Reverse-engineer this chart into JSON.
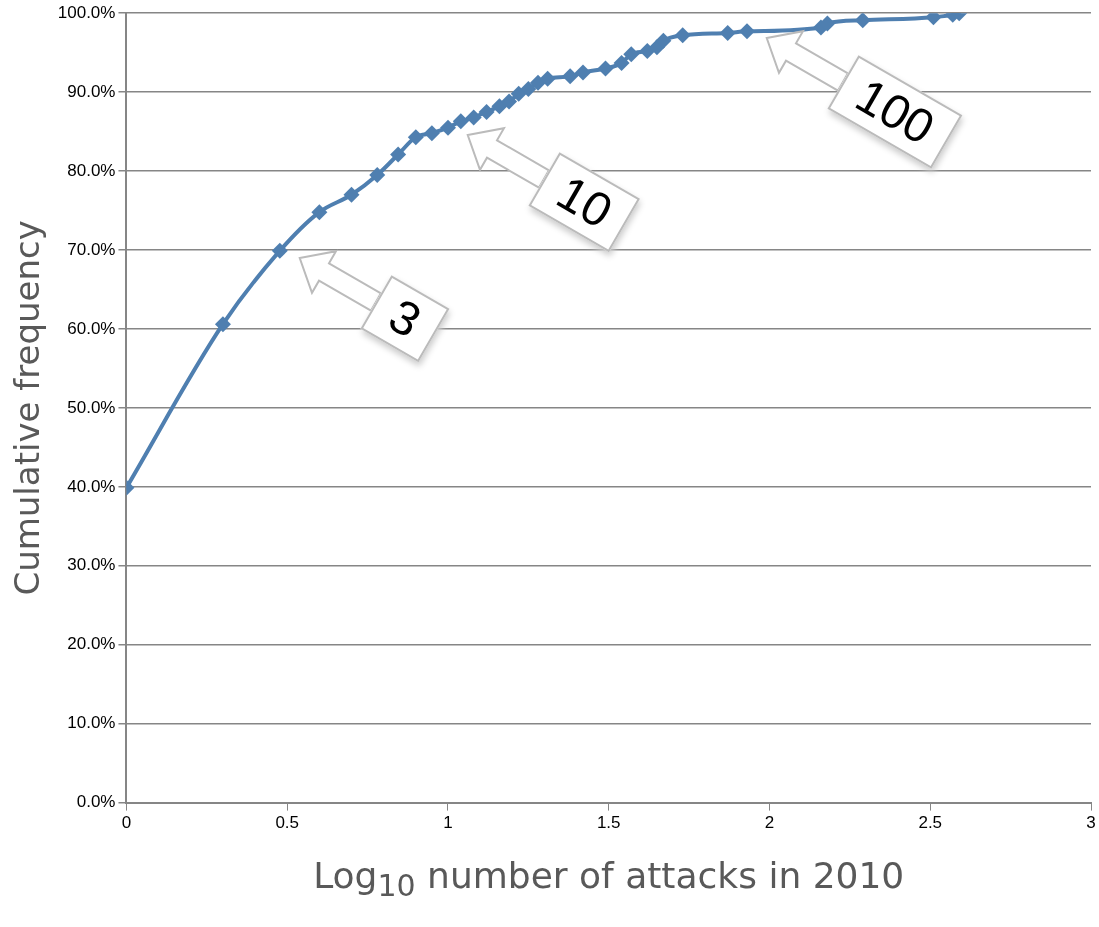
{
  "chart_data": {
    "type": "line",
    "xlabel": "Log$_{10}$ number of attacks in 2010",
    "ylabel": "Cumulative frequency",
    "x": [
      0,
      0.3,
      0.477,
      0.6,
      0.7,
      0.78,
      0.845,
      0.9,
      0.95,
      1.0,
      1.04,
      1.08,
      1.12,
      1.16,
      1.19,
      1.22,
      1.25,
      1.28,
      1.31,
      1.38,
      1.42,
      1.49,
      1.54,
      1.57,
      1.62,
      1.65,
      1.67,
      1.73,
      1.87,
      1.93,
      2.16,
      2.18,
      2.29,
      2.51,
      2.57,
      2.59
    ],
    "series": [
      {
        "color": "#4f7fb0",
        "values": [
          39.9,
          60.6,
          69.9,
          74.8,
          77.0,
          79.5,
          82.1,
          84.3,
          84.8,
          85.5,
          86.3,
          86.8,
          87.5,
          88.2,
          88.8,
          89.8,
          90.4,
          91.2,
          91.7,
          92.0,
          92.5,
          93.0,
          93.7,
          94.8,
          95.2,
          95.7,
          96.5,
          97.2,
          97.5,
          97.7,
          98.2,
          98.7,
          99.1,
          99.5,
          99.8,
          100.0
        ]
      }
    ],
    "xlim": [
      0,
      3
    ],
    "xticks": [
      0,
      0.5,
      1,
      1.5,
      2,
      2.5,
      3
    ],
    "ylim": [
      0,
      100
    ],
    "yticks": [
      {
        "value": 0,
        "label": "0.0%"
      },
      {
        "value": 10,
        "label": "10.0%"
      },
      {
        "value": 20,
        "label": "20.0%"
      },
      {
        "value": 30,
        "label": "30.0%"
      },
      {
        "value": 40,
        "label": "40.0%"
      },
      {
        "value": 50,
        "label": "50.0%"
      },
      {
        "value": 60,
        "label": "60.0%"
      },
      {
        "value": 70,
        "label": "70.0%"
      },
      {
        "value": 80,
        "label": "80.0%"
      },
      {
        "value": 90,
        "label": "90.0%"
      },
      {
        "value": 100,
        "label": "100.0%"
      }
    ],
    "grid": "y",
    "legend": false,
    "marker": "diamond",
    "line_style": "solid",
    "annotations": [
      {
        "text": "3",
        "x": 0.477,
        "y": 69.9
      },
      {
        "text": "10",
        "x": 1.0,
        "y": 85.5
      },
      {
        "text": "100",
        "x": 1.93,
        "y": 97.7
      }
    ]
  }
}
